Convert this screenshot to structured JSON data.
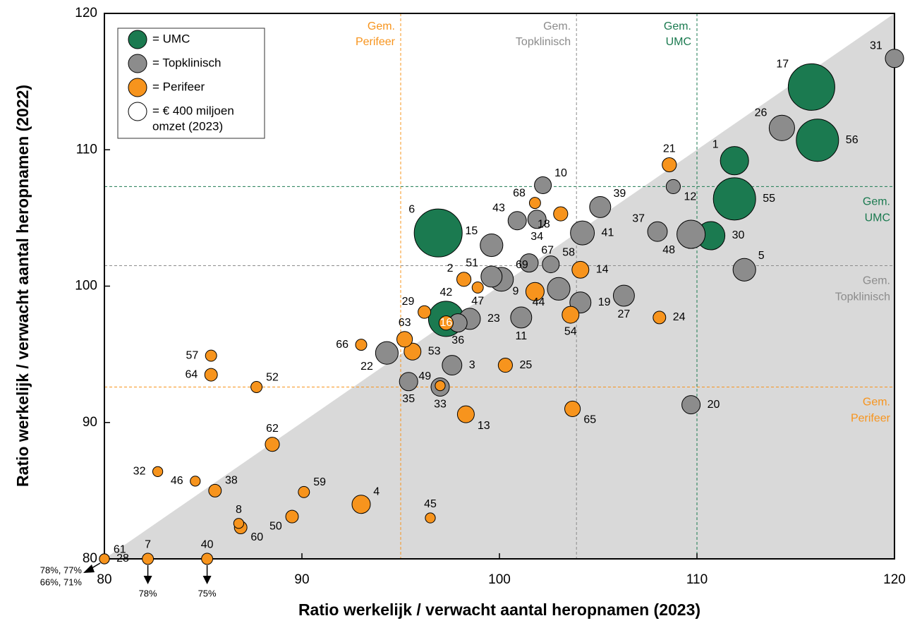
{
  "chart_data": {
    "type": "bubble",
    "x_label": "Ratio werkelijk / verwacht aantal heropnamen (2023)",
    "y_label": "Ratio werkelijk / verwacht aantal heropnamen (2022)",
    "xlim": [
      80,
      120
    ],
    "ylim": [
      80,
      120
    ],
    "xticks": [
      80,
      90,
      100,
      110,
      120
    ],
    "yticks": [
      80,
      90,
      100,
      110,
      120
    ],
    "legend": "upper left",
    "size_legend_value": 400,
    "size_legend_label": [
      "= € 400 miljoen",
      "omzet (2023)"
    ],
    "series": [
      {
        "name": "= UMC",
        "color": "#1b7a50",
        "labels": [
          "17",
          "56",
          "1",
          "55",
          "6",
          "30",
          "42"
        ],
        "x": [
          115.8,
          116.1,
          111.9,
          111.9,
          96.9,
          110.7,
          97.3
        ],
        "values": [
          114.6,
          110.7,
          109.2,
          106.4,
          103.9,
          103.7,
          97.6
        ],
        "sizes": [
          2580,
          2130,
          950,
          2130,
          2740,
          950,
          1480
        ]
      },
      {
        "name": "= Topklinisch",
        "color": "#8c8c8c",
        "labels": [
          "31",
          "26",
          "12",
          "10",
          "39",
          "43",
          "34",
          "37",
          "41",
          "48",
          "15",
          "67",
          "58",
          "5",
          "51",
          "69",
          "44",
          "27",
          "19",
          "11",
          "23",
          "36",
          "22",
          "3",
          "33",
          "35",
          "20"
        ],
        "x": [
          120.0,
          114.3,
          108.8,
          102.2,
          105.1,
          100.9,
          101.9,
          108.0,
          104.2,
          109.7,
          99.6,
          101.5,
          102.6,
          112.4,
          99.6,
          100.1,
          103.0,
          106.3,
          104.1,
          101.1,
          98.5,
          97.9,
          94.3,
          97.6,
          97.0,
          95.4,
          109.7
        ],
        "values": [
          116.7,
          111.6,
          107.3,
          107.4,
          105.8,
          104.8,
          104.9,
          104.0,
          103.9,
          103.8,
          103.0,
          101.7,
          101.6,
          101.2,
          100.7,
          100.5,
          99.8,
          99.3,
          98.8,
          97.7,
          97.6,
          97.3,
          95.1,
          94.2,
          92.6,
          93.0,
          91.3
        ],
        "sizes": [
          400,
          770,
          240,
          340,
          530,
          400,
          400,
          460,
          680,
          950,
          610,
          400,
          340,
          610,
          530,
          680,
          610,
          530,
          530,
          530,
          530,
          400,
          610,
          460,
          400,
          400,
          400
        ]
      },
      {
        "name": "= Perifeer",
        "color": "#f7941d",
        "labels": [
          "21",
          "68",
          "18",
          "14",
          "2",
          "47",
          "9",
          "24",
          "54",
          "16",
          "29",
          "63",
          "66",
          "53",
          "25",
          "49",
          "13",
          "65",
          "57",
          "64",
          "52",
          "62",
          "32",
          "46",
          "38",
          "59",
          "4",
          "45",
          "50",
          "8",
          "60",
          "61",
          "28",
          "7",
          "40"
        ],
        "x": [
          108.6,
          101.8,
          103.1,
          104.1,
          98.2,
          98.9,
          101.8,
          108.1,
          103.6,
          97.3,
          96.2,
          95.2,
          93.0,
          95.6,
          100.3,
          97.0,
          98.3,
          103.7,
          85.4,
          85.4,
          87.7,
          88.5,
          82.7,
          84.6,
          85.6,
          90.1,
          93.0,
          96.5,
          89.5,
          86.8,
          86.9,
          80.0,
          80.0,
          82.2,
          85.2
        ],
        "values": [
          108.9,
          106.1,
          105.3,
          101.2,
          100.5,
          99.9,
          99.6,
          97.7,
          97.9,
          97.3,
          98.1,
          96.1,
          95.7,
          95.2,
          94.2,
          92.7,
          90.6,
          91.0,
          94.9,
          93.5,
          92.6,
          88.4,
          86.4,
          85.7,
          85.0,
          84.9,
          84.0,
          83.0,
          83.1,
          82.6,
          82.3,
          80.0,
          80.0,
          80.0,
          80.0
        ],
        "sizes": [
          240,
          150,
          240,
          340,
          240,
          150,
          400,
          190,
          340,
          240,
          190,
          290,
          150,
          340,
          240,
          120,
          340,
          290,
          150,
          190,
          150,
          240,
          120,
          120,
          190,
          150,
          400,
          120,
          190,
          120,
          190,
          120,
          120,
          150,
          150
        ]
      }
    ],
    "reference_lines": [
      {
        "axis": "x",
        "value": 95.0,
        "color": "#f7941d",
        "label": [
          "Gem.",
          "Perifeer"
        ]
      },
      {
        "axis": "x",
        "value": 103.9,
        "color": "#8c8c8c",
        "label": [
          "Gem.",
          "Topklinisch"
        ]
      },
      {
        "axis": "x",
        "value": 110.0,
        "color": "#1b7a50",
        "label": [
          "Gem.",
          "UMC"
        ]
      },
      {
        "axis": "y",
        "value": 107.3,
        "color": "#1b7a50",
        "label": [
          "Gem.",
          "UMC"
        ]
      },
      {
        "axis": "y",
        "value": 101.5,
        "color": "#8c8c8c",
        "label": [
          "Gem.",
          "Topklinisch"
        ]
      },
      {
        "axis": "y",
        "value": 92.6,
        "color": "#f7941d",
        "label": [
          "Gem.",
          "Perifeer"
        ]
      }
    ],
    "offscale_notes": [
      {
        "x": 80.0,
        "lines": [
          "78%, 77%",
          "66%, 71%"
        ]
      },
      {
        "x": 82.2,
        "lines": [
          "78%"
        ]
      },
      {
        "x": 85.2,
        "lines": [
          "75%"
        ]
      }
    ]
  }
}
